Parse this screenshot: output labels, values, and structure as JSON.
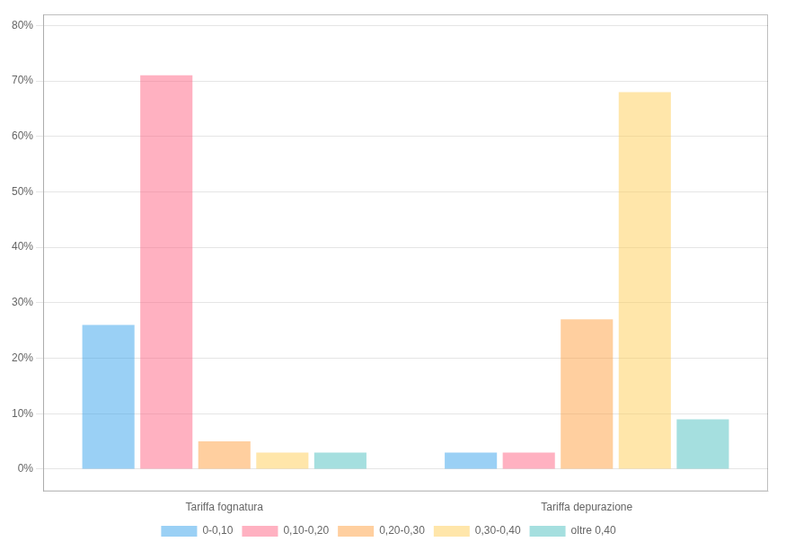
{
  "chart_data": {
    "type": "bar",
    "categories": [
      "Tariffa fognatura",
      "Tariffa depurazione"
    ],
    "series": [
      {
        "name": "0-0,10",
        "values": [
          26,
          3
        ]
      },
      {
        "name": "0,10-0,20",
        "values": [
          71,
          3
        ]
      },
      {
        "name": "0,20-0,30",
        "values": [
          5,
          27
        ]
      },
      {
        "name": "0,30-0,40",
        "values": [
          3,
          68
        ]
      },
      {
        "name": "oltre 0,40",
        "values": [
          3,
          9
        ]
      }
    ],
    "ylim": [
      -4,
      82
    ],
    "yticks": [
      {
        "value": 0,
        "label": "0%"
      },
      {
        "value": 10,
        "label": "10%"
      },
      {
        "value": 20,
        "label": "20%"
      },
      {
        "value": 30,
        "label": "30%"
      },
      {
        "value": 40,
        "label": "40%"
      },
      {
        "value": 50,
        "label": "50%"
      },
      {
        "value": 60,
        "label": "60%"
      },
      {
        "value": 70,
        "label": "70%"
      },
      {
        "value": 80,
        "label": "80%"
      }
    ],
    "grid": true,
    "legend": "bottom"
  }
}
